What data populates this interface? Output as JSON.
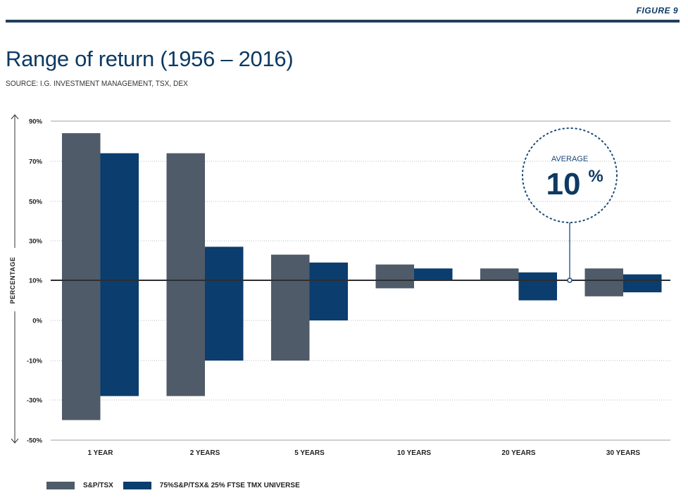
{
  "header": {
    "figure_label": "FIGURE 9",
    "title": "Range of return (1956 – 2016)",
    "source": "SOURCE: I.G. INVESTMENT MANAGEMENT, TSX, DEX"
  },
  "colors": {
    "accent": "#0d3a63",
    "series1": "#4f5b69",
    "series2": "#0b3d6e",
    "rule": "#233e5c"
  },
  "annotation": {
    "small": "AVERAGE",
    "big": "10",
    "pct": "%",
    "value": 10
  },
  "chart_data": {
    "type": "bar",
    "subtype": "floating-range",
    "title": "Range of return (1956 – 2016)",
    "ylabel": "PERCENTAGE",
    "ytick_labels": [
      "90%",
      "70%",
      "50%",
      "30%",
      "10%",
      "0%",
      "-10%",
      "-30%",
      "-50%"
    ],
    "reference_line": 10,
    "grid": "horizontal dotted",
    "legend_position": "bottom-left",
    "categories": [
      "1 YEAR",
      "2 YEARS",
      "5 YEARS",
      "10 YEARS",
      "20 YEARS",
      "30 YEARS"
    ],
    "series": [
      {
        "name": "S&P/TSX",
        "color": "#4f5b69",
        "ranges": [
          [
            -40,
            84
          ],
          [
            -28,
            74
          ],
          [
            -10,
            23
          ],
          [
            8,
            18
          ],
          [
            10,
            16
          ],
          [
            6,
            16
          ]
        ]
      },
      {
        "name": "75%S&P/TSX& 25% FTSE TMX UNIVERSE",
        "color": "#0b3d6e",
        "ranges": [
          [
            -28,
            74
          ],
          [
            -10,
            27
          ],
          [
            0,
            19
          ],
          [
            10,
            16
          ],
          [
            5,
            14
          ],
          [
            7,
            13
          ]
        ]
      }
    ]
  }
}
